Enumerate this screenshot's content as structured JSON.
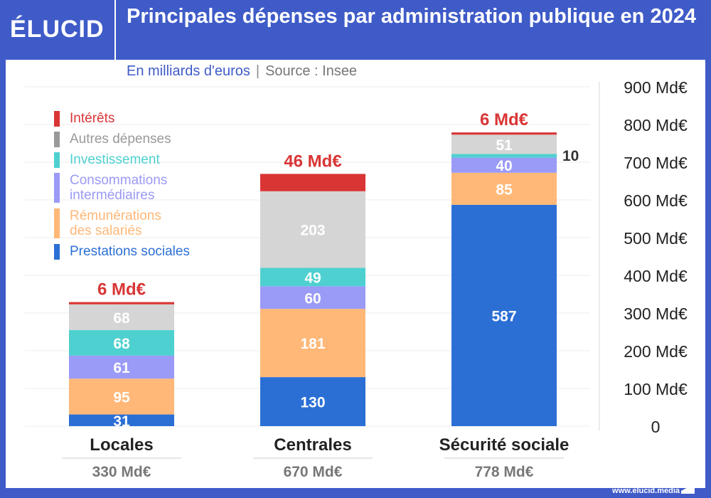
{
  "header": {
    "logo": "ÉLUCID",
    "title": "Principales dépenses par administration publique en 2024"
  },
  "subtitle": {
    "unit": "En milliards d'euros",
    "separator": "|",
    "source": "Source : Insee"
  },
  "footer": {
    "url": "www.elucid.media"
  },
  "colors": {
    "Intérêts": "#d93535",
    "Autres dépenses": "#d5d5d5",
    "Investissement": "#4fd0d0",
    "Consommations intermédiaires": "#9a9af7",
    "Rémunérations des salariés": "#ffb878",
    "Prestations sociales": "#2b6fd5",
    "brand": "#3f5bc8"
  },
  "chart_data": {
    "type": "bar",
    "stacked": true,
    "title": "Principales dépenses par administration publique en 2024",
    "ylabel": "En milliards d'euros",
    "ylim": [
      0,
      900
    ],
    "yticks": [
      0,
      100,
      200,
      300,
      400,
      500,
      600,
      700,
      800,
      900
    ],
    "ytick_labels": [
      "0",
      "100 Md€",
      "200 Md€",
      "300 Md€",
      "400 Md€",
      "500 Md€",
      "600 Md€",
      "700 Md€",
      "800 Md€",
      "900 Md€"
    ],
    "grid": true,
    "legend_position": "top-left",
    "categories": [
      "Locales",
      "Centrales",
      "Sécurité sociale"
    ],
    "totals": [
      "330 Md€",
      "670 Md€",
      "778 Md€"
    ],
    "series": [
      {
        "name": "Prestations sociales",
        "values": [
          31,
          130,
          587
        ]
      },
      {
        "name": "Rémunérations des salariés",
        "values": [
          95,
          181,
          85
        ]
      },
      {
        "name": "Consommations intermédiaires",
        "values": [
          61,
          60,
          40
        ]
      },
      {
        "name": "Investissement",
        "values": [
          68,
          49,
          10
        ]
      },
      {
        "name": "Autres dépenses",
        "values": [
          68,
          203,
          51
        ]
      },
      {
        "name": "Intérêts",
        "values": [
          6,
          46,
          6
        ]
      }
    ],
    "top_labels": [
      "6 Md€",
      "46 Md€",
      "6 Md€"
    ]
  },
  "legend": [
    {
      "label": "Intérêts",
      "lines": [
        "Intérêts"
      ]
    },
    {
      "label": "Autres dépenses",
      "lines": [
        "Autres dépenses"
      ]
    },
    {
      "label": "Investissement",
      "lines": [
        "Investissement"
      ]
    },
    {
      "label": "Consommations intermédiaires",
      "lines": [
        "Consommations",
        "intermédiaires"
      ]
    },
    {
      "label": "Rémunérations des salariés",
      "lines": [
        "Rémunérations",
        "des salariés"
      ]
    },
    {
      "label": "Prestations sociales",
      "lines": [
        "Prestations sociales"
      ]
    }
  ]
}
